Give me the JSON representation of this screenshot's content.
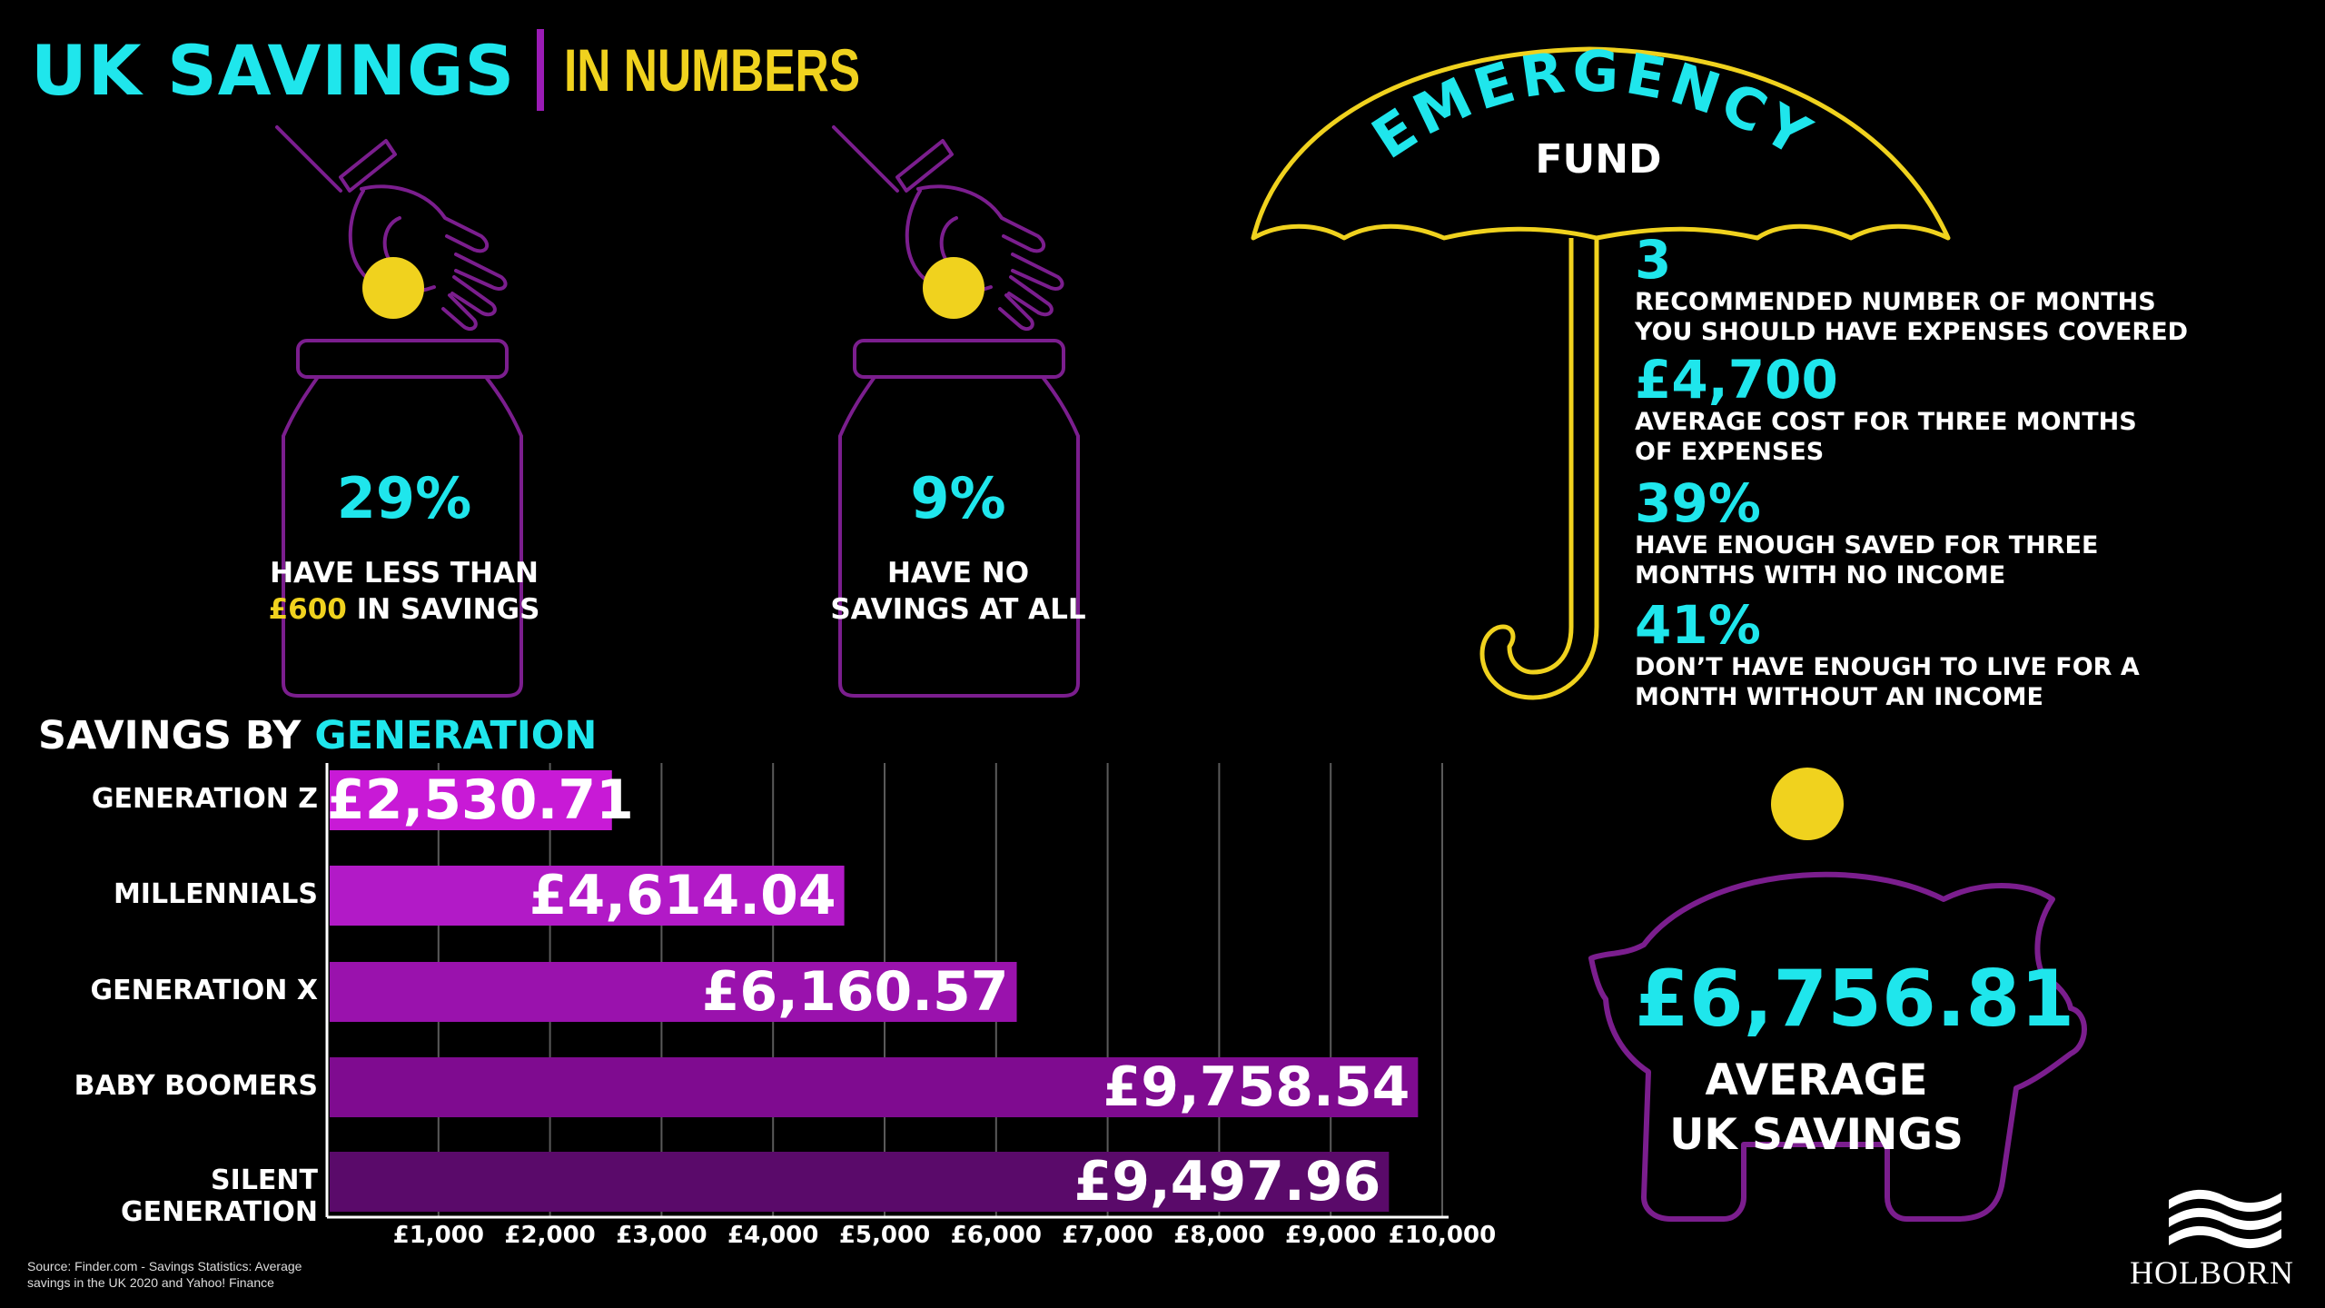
{
  "header": {
    "title": "UK SAVINGS",
    "subtitle": "IN NUMBERS"
  },
  "jars": [
    {
      "pct": "29%",
      "line1": "HAVE LESS THAN",
      "line2_accent": "£600",
      "line2_rest": " IN SAVINGS"
    },
    {
      "pct": "9%",
      "line1": "HAVE NO",
      "line2": "SAVINGS AT ALL"
    }
  ],
  "emergency": {
    "title": "EMERGENCY",
    "subtitle": "FUND",
    "items": [
      {
        "num": "3",
        "l1": "RECOMMENDED NUMBER OF MONTHS",
        "l2": "YOU SHOULD HAVE EXPENSES COVERED"
      },
      {
        "num": "£4,700",
        "l1": "AVERAGE COST FOR THREE MONTHS",
        "l2": "OF EXPENSES"
      },
      {
        "num": "39%",
        "l1": "HAVE ENOUGH SAVED FOR THREE",
        "l2": "MONTHS WITH NO INCOME"
      },
      {
        "num": "41%",
        "l1": "DON’T HAVE ENOUGH TO LIVE FOR A",
        "l2": "MONTH WITHOUT AN INCOME"
      }
    ]
  },
  "chart_data": {
    "type": "bar",
    "orientation": "horizontal",
    "title_part1": "SAVINGS BY ",
    "title_part2": "GENERATION",
    "categories": [
      "GENERATION  Z",
      "MILLENNIALS",
      "GENERATION  X",
      "BABY BOOMERS",
      "SILENT GENERATION"
    ],
    "values": [
      2530.71,
      4614.04,
      6160.57,
      9758.54,
      9497.96
    ],
    "value_labels": [
      "£2,530.71",
      "£4,614.04",
      "£6,160.57",
      "£9,758.54",
      "£9,497.96"
    ],
    "colors": [
      "#c81ad6",
      "#b21ac7",
      "#9a12ad",
      "#7f0b90",
      "#5a0a6a"
    ],
    "ticks": [
      "£1,000",
      "£2,000",
      "£3,000",
      "£4,000",
      "£5,000",
      "£6,000",
      "£7,000",
      "£8,000",
      "£9,000",
      "£10,000"
    ],
    "xlim": [
      0,
      10000
    ],
    "grid": true
  },
  "piggy": {
    "value": "£6,756.81",
    "l1": "AVERAGE",
    "l2": "UK SAVINGS"
  },
  "source": {
    "l1": "Source: Finder.com - Savings Statistics: Average",
    "l2": "savings in the UK 2020 and Yahoo! Finance"
  },
  "brand": "HOLBORN"
}
